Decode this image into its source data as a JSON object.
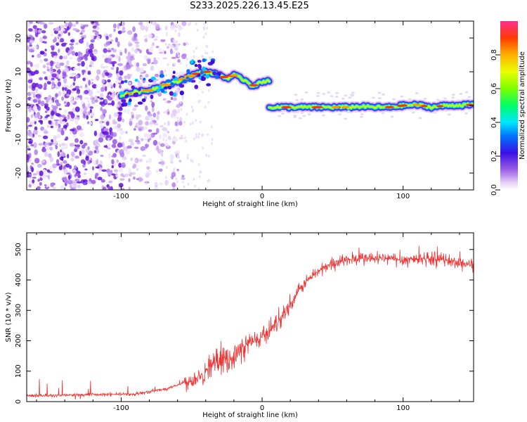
{
  "title": "S233.2025.226.13.45.E25",
  "chart_data": [
    {
      "type": "heatmap",
      "xlabel": "Height of straight line (km)",
      "ylabel": "Frequency (Hz)",
      "xlim": [
        -167,
        150
      ],
      "ylim": [
        -25,
        25
      ],
      "xticks": [
        -100,
        0,
        100
      ],
      "yticks": [
        -20,
        -10,
        0,
        10,
        20
      ],
      "colorbar": {
        "label": "Normalized spectral amplitude",
        "range": [
          0.0,
          1.0
        ],
        "ticks": [
          "0.0",
          "0.2",
          "0.4",
          "0.6",
          "0.8"
        ]
      },
      "ridge_upper": {
        "x": [
          -100,
          -90,
          -80,
          -70,
          -60,
          -50,
          -40,
          -30,
          -25,
          -20,
          -15,
          -10,
          -8,
          -5,
          0,
          5
        ],
        "y": [
          3,
          4,
          4.5,
          6,
          7,
          9,
          10,
          9,
          8,
          9,
          8,
          7,
          6,
          6,
          7,
          7.5
        ]
      },
      "ridge_lower": {
        "x": [
          5,
          20,
          40,
          60,
          70,
          80,
          90,
          100,
          110,
          120,
          130,
          150
        ],
        "y": [
          -0.5,
          -0.5,
          -0.5,
          -0.5,
          -0.3,
          -0.5,
          -0.5,
          0,
          0.2,
          -0.5,
          0,
          0.2
        ]
      }
    },
    {
      "type": "line",
      "xlabel": "Height of straight line (km)",
      "ylabel": "SNR (10 * v/v)",
      "xlim": [
        -167,
        150
      ],
      "ylim": [
        0,
        555
      ],
      "xticks": [
        -100,
        0,
        100
      ],
      "yticks": [
        0,
        100,
        200,
        300,
        400,
        500
      ],
      "series": [
        {
          "name": "SNR",
          "color": "#ee3333",
          "x": [
            -167,
            -150,
            -130,
            -110,
            -90,
            -70,
            -60,
            -50,
            -40,
            -35,
            -30,
            -20,
            -10,
            0,
            10,
            20,
            30,
            40,
            50,
            60,
            70,
            80,
            90,
            100,
            110,
            120,
            130,
            140,
            150
          ],
          "y": [
            20,
            20,
            22,
            23,
            25,
            40,
            55,
            70,
            100,
            130,
            130,
            150,
            190,
            210,
            260,
            320,
            390,
            430,
            455,
            465,
            470,
            470,
            470,
            465,
            470,
            470,
            465,
            455,
            450
          ]
        }
      ]
    }
  ]
}
